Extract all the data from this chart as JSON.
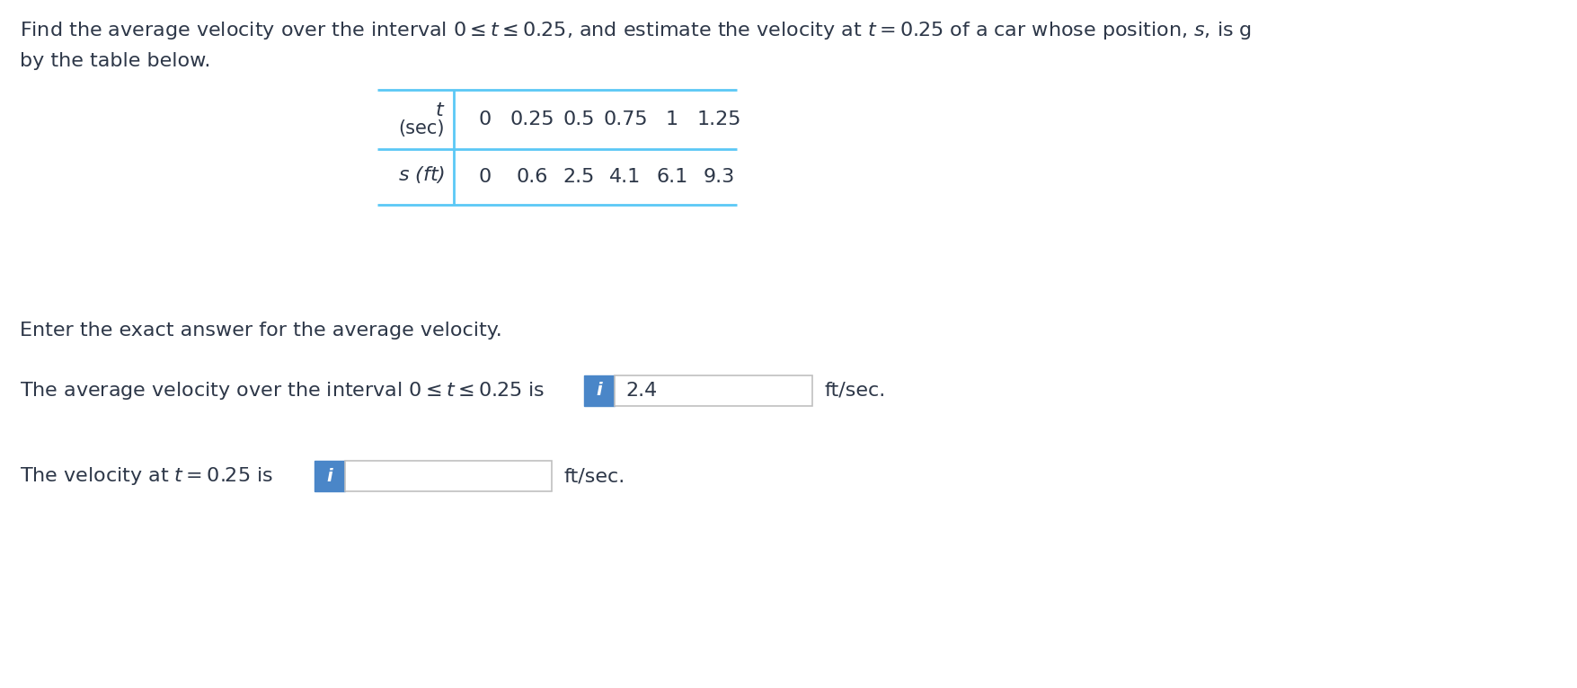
{
  "background_color": "#ffffff",
  "title_line1": "Find the average velocity over the interval $0 \\leq t \\leq 0.25$, and estimate the velocity at $t = 0.25$ of a car whose position, $s$, is g",
  "title_line2": "by the table below.",
  "t_values": [
    "0",
    "0.25",
    "0.5",
    "0.75",
    "1",
    "1.25"
  ],
  "s_values": [
    "0",
    "0.6",
    "2.5",
    "4.1",
    "6.1",
    "9.3"
  ],
  "enter_text": "Enter the exact answer for the average velocity.",
  "avg_vel_text_prefix": "The average velocity over the interval $0 \\leq t \\leq 0.25$ is",
  "avg_vel_value": "2.4",
  "avg_vel_suffix": "ft/sec.",
  "vel_text_prefix": "The velocity at $t = 0.25$ is",
  "vel_suffix": "ft/sec.",
  "table_line_color": "#5bc8f5",
  "info_box_color": "#4a86c8",
  "input_box_border": "#c0c0c0",
  "text_color": "#2d3748",
  "font_size_main": 16,
  "font_size_table": 16
}
